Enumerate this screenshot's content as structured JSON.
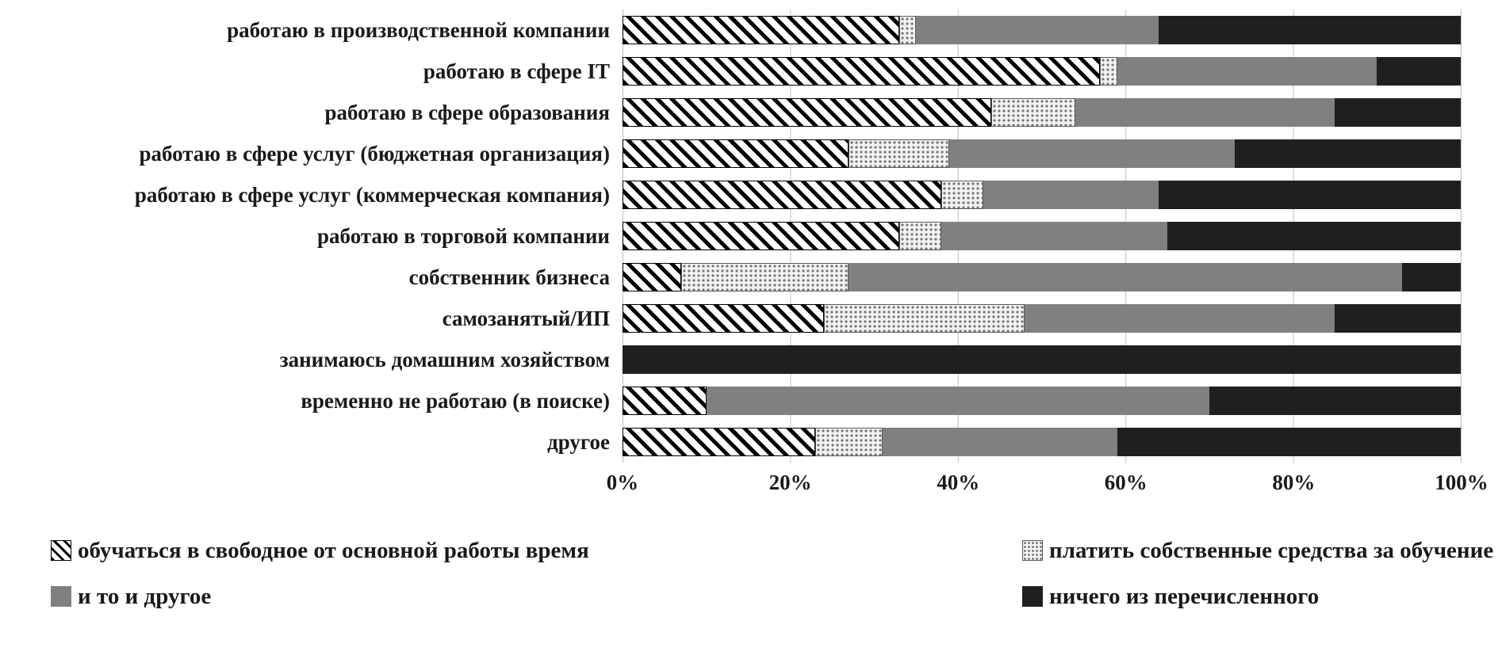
{
  "chart_data": {
    "type": "bar",
    "stacked": true,
    "orientation": "horizontal",
    "title": "",
    "xlabel": "",
    "ylabel": "",
    "xlim": [
      0,
      100
    ],
    "grid": true,
    "legend_position": "bottom",
    "x_ticks": [
      "0%",
      "20%",
      "40%",
      "60%",
      "80%",
      "100%"
    ],
    "x_tick_positions": [
      0,
      20,
      40,
      60,
      80,
      100
    ],
    "categories": [
      "работаю в производственной компании",
      "работаю  в сфере IT",
      "работаю в сфере образования",
      "работаю  в сфере услуг (бюджетная организация)",
      "работаю в сфере услуг (коммерческая компания)",
      "работаю в торговой компании",
      "собственник бизнеса",
      "самозанятый/ИП",
      "занимаюсь домашним хозяйством",
      "временно не работаю (в поиске)",
      "другое"
    ],
    "series": [
      {
        "key": "study-in-free-time",
        "name": "обучаться в свободное от основной работы время",
        "pattern": "diagonal-hatch",
        "color": "#000000",
        "values": [
          33,
          57,
          44,
          27,
          38,
          33,
          7,
          24,
          0,
          10,
          23
        ]
      },
      {
        "key": "pay-own-funds",
        "name": "платить собственные средства за обучение",
        "pattern": "dots",
        "color": "#f2f2f2",
        "values": [
          2,
          2,
          10,
          12,
          5,
          5,
          20,
          24,
          0,
          0,
          8
        ]
      },
      {
        "key": "both",
        "name": "и то и другое",
        "pattern": "solid",
        "color": "#808080",
        "values": [
          29,
          31,
          31,
          34,
          21,
          27,
          66,
          37,
          0,
          60,
          28
        ]
      },
      {
        "key": "none-of-listed",
        "name": "ничего из перечисленного",
        "pattern": "solid",
        "color": "#1f1f1f",
        "values": [
          36,
          10,
          15,
          27,
          36,
          35,
          7,
          15,
          100,
          30,
          41
        ]
      }
    ]
  }
}
